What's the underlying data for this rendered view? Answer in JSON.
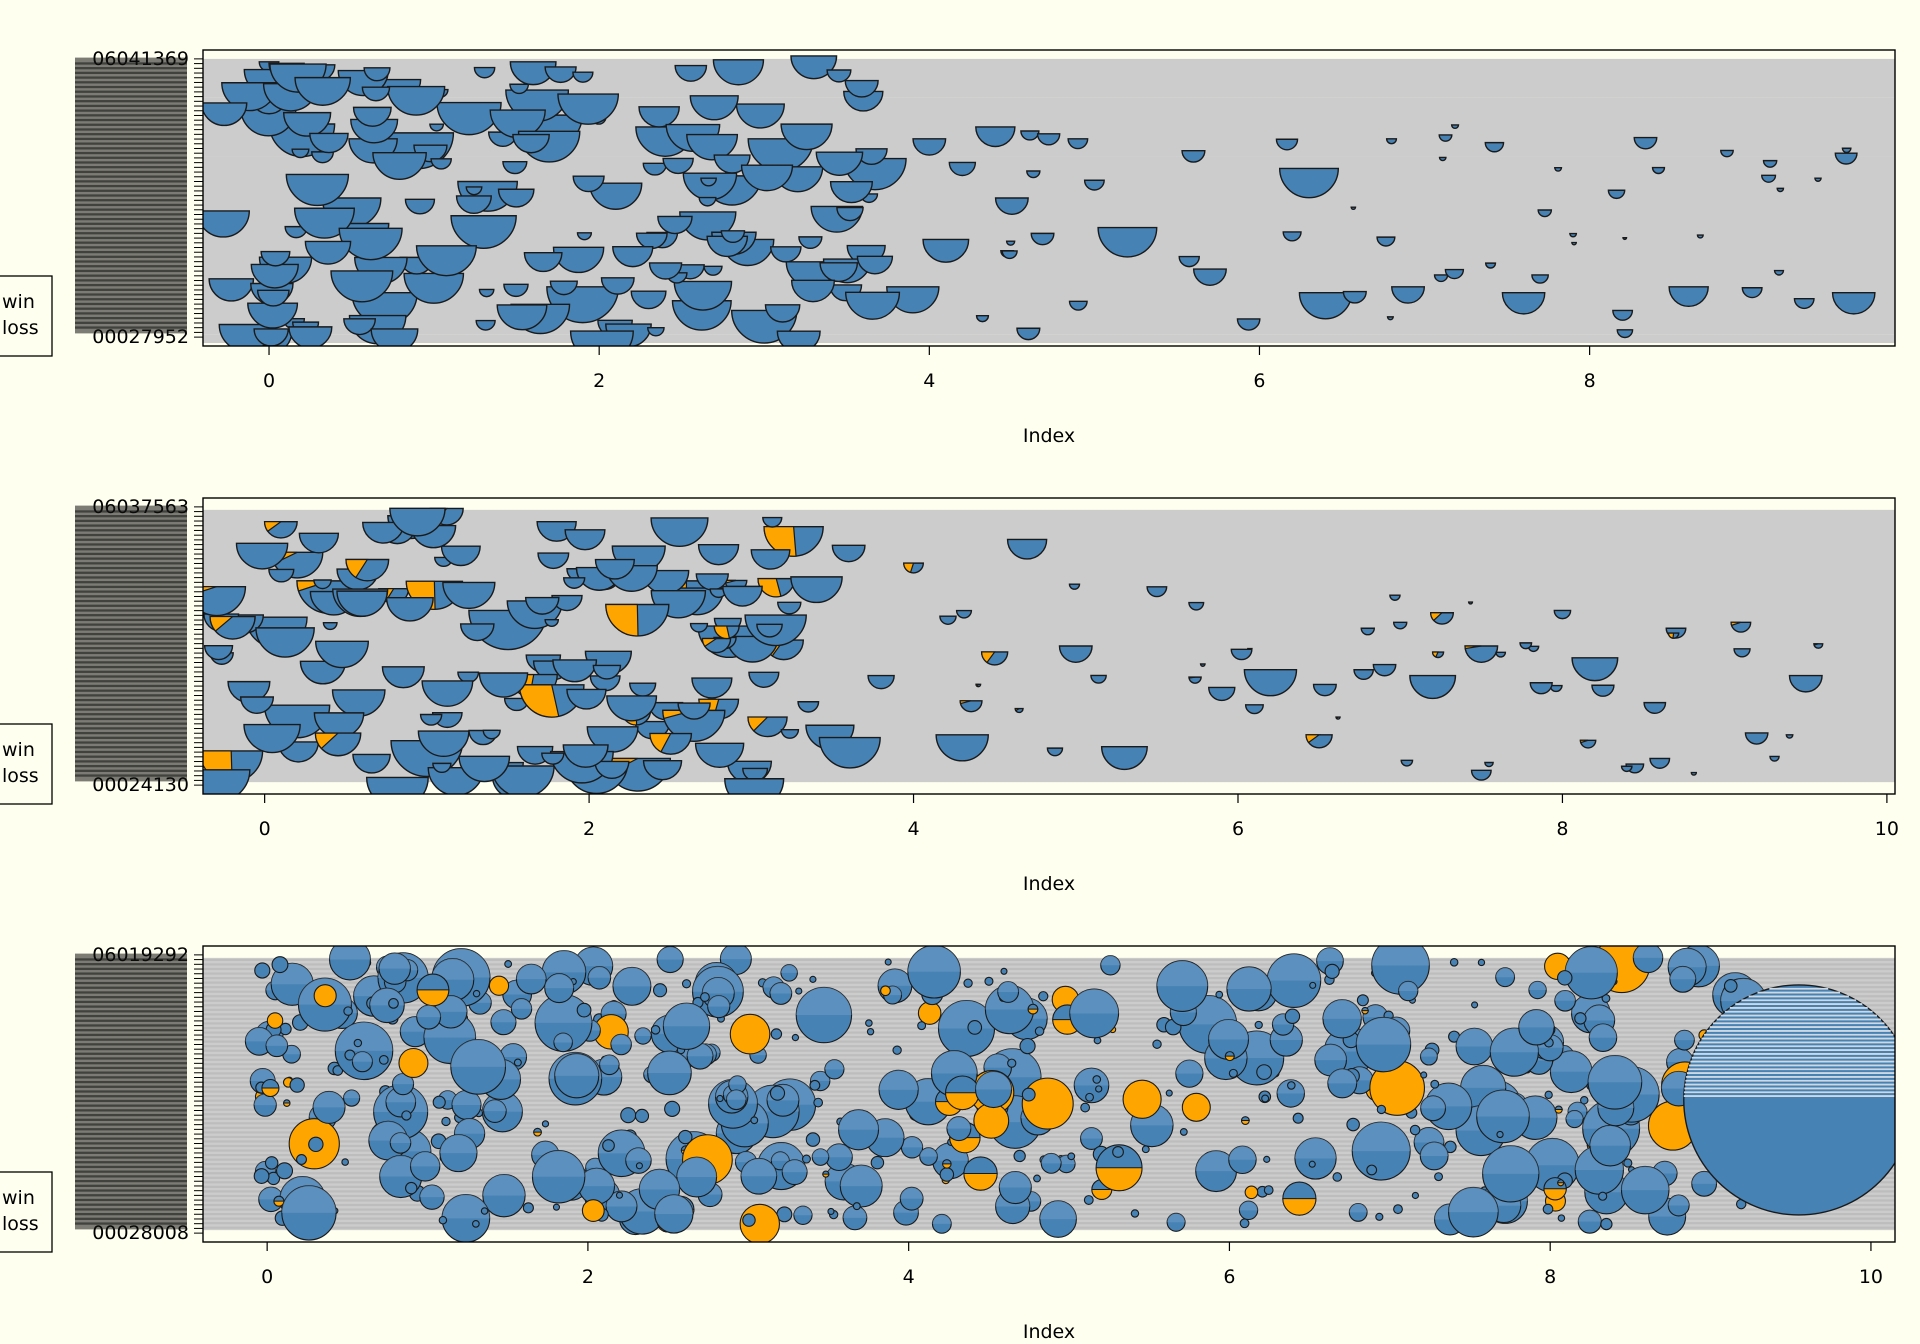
{
  "chart_data": [
    {
      "type": "scatter",
      "title": "",
      "xlabel": "Index",
      "ylabel": "",
      "xlim": [
        -0.4,
        9.85
      ],
      "xticks": [
        0,
        2,
        4,
        6,
        8
      ],
      "y_tick_labels": {
        "top": "06041369",
        "bottom": "00027952"
      },
      "y_tick_count": 60,
      "legend": {
        "placement": "left-bottom",
        "entries": [
          "win",
          "loss"
        ]
      },
      "series": [
        {
          "name": "win",
          "color": "#ffa500"
        },
        {
          "name": "loss",
          "color": "#4682b4"
        }
      ],
      "band_color": "#cccccc",
      "bands": [
        [
          0.01,
          0.04
        ],
        [
          0.04,
          0.64
        ],
        [
          0.64,
          0.84
        ],
        [
          0.84,
          0.97
        ]
      ],
      "points": [
        {
          "x": 0.0,
          "y": 0.96,
          "r": 0.06,
          "w": 0
        },
        {
          "x": 0.3,
          "y": 0.95,
          "r": 0.1,
          "w": 0
        },
        {
          "x": 0.8,
          "y": 0.9,
          "r": 0.12,
          "w": 0
        },
        {
          "x": 1.6,
          "y": 0.96,
          "r": 0.14,
          "w": 0
        },
        {
          "x": 3.3,
          "y": 0.98,
          "r": 0.14,
          "w": 0
        },
        {
          "x": 3.6,
          "y": 0.86,
          "r": 0.12,
          "w": 0
        },
        {
          "x": 0.2,
          "y": 0.75,
          "r": 0.2,
          "w": 0
        },
        {
          "x": 0.9,
          "y": 0.72,
          "r": 0.22,
          "w": 0
        },
        {
          "x": 1.7,
          "y": 0.78,
          "r": 0.2,
          "w": 0
        },
        {
          "x": 2.4,
          "y": 0.74,
          "r": 0.18,
          "w": 0
        },
        {
          "x": 3.1,
          "y": 0.7,
          "r": 0.2,
          "w": 0
        },
        {
          "x": 4.0,
          "y": 0.7,
          "r": 0.1,
          "w": 0
        },
        {
          "x": 4.4,
          "y": 0.74,
          "r": 0.12,
          "w": 0
        },
        {
          "x": 5.0,
          "y": 0.56,
          "r": 0.06,
          "w": 0
        },
        {
          "x": 5.6,
          "y": 0.66,
          "r": 0.07,
          "w": 0
        },
        {
          "x": 6.3,
          "y": 0.6,
          "r": 0.18,
          "w": 0
        },
        {
          "x": 6.8,
          "y": 0.7,
          "r": 0.03,
          "w": 0
        },
        {
          "x": 4.5,
          "y": 0.5,
          "r": 0.1,
          "w": 0
        },
        {
          "x": 5.2,
          "y": 0.4,
          "r": 0.18,
          "w": 0
        },
        {
          "x": 4.1,
          "y": 0.36,
          "r": 0.14,
          "w": 0
        },
        {
          "x": 2.9,
          "y": 0.36,
          "r": 0.16,
          "w": 0
        },
        {
          "x": 1.3,
          "y": 0.44,
          "r": 0.2,
          "w": 0
        },
        {
          "x": 0.5,
          "y": 0.5,
          "r": 0.18,
          "w": 0
        },
        {
          "x": 0.1,
          "y": 0.3,
          "r": 0.16,
          "w": 0
        },
        {
          "x": 0.7,
          "y": 0.18,
          "r": 0.2,
          "w": 0
        },
        {
          "x": 1.9,
          "y": 0.2,
          "r": 0.22,
          "w": 0
        },
        {
          "x": 3.0,
          "y": 0.12,
          "r": 0.2,
          "w": 0
        },
        {
          "x": 3.9,
          "y": 0.2,
          "r": 0.16,
          "w": 0
        },
        {
          "x": 4.6,
          "y": 0.06,
          "r": 0.07,
          "w": 0
        },
        {
          "x": 5.7,
          "y": 0.26,
          "r": 0.1,
          "w": 0
        },
        {
          "x": 6.4,
          "y": 0.18,
          "r": 0.16,
          "w": 0
        },
        {
          "x": 6.9,
          "y": 0.2,
          "r": 0.1,
          "w": 0
        },
        {
          "x": 7.6,
          "y": 0.18,
          "r": 0.13,
          "w": 0
        },
        {
          "x": 8.2,
          "y": 0.12,
          "r": 0.06,
          "w": 0
        },
        {
          "x": 8.6,
          "y": 0.2,
          "r": 0.12,
          "w": 0
        },
        {
          "x": 9.3,
          "y": 0.16,
          "r": 0.06,
          "w": 0
        },
        {
          "x": 9.6,
          "y": 0.18,
          "r": 0.13,
          "w": 0
        },
        {
          "x": 7.4,
          "y": 0.28,
          "r": 0.03,
          "w": 0
        },
        {
          "x": 7.9,
          "y": 0.38,
          "r": 0.02,
          "w": 0
        },
        {
          "x": 7.1,
          "y": 0.24,
          "r": 0.04,
          "w": 0
        },
        {
          "x": 7.7,
          "y": 0.24,
          "r": 0.05,
          "w": 0
        },
        {
          "x": 4.9,
          "y": 0.7,
          "r": 0.06,
          "w": 0
        },
        {
          "x": 4.2,
          "y": 0.62,
          "r": 0.08,
          "w": 0
        },
        {
          "x": 2.1,
          "y": 0.55,
          "r": 0.16,
          "w": 0
        },
        {
          "x": 0.0,
          "y": 0.05,
          "r": 0.14,
          "w": 0
        }
      ]
    },
    {
      "type": "scatter",
      "title": "",
      "xlabel": "Index",
      "ylabel": "",
      "xlim": [
        -0.38,
        10.05
      ],
      "xticks": [
        0,
        2,
        4,
        6,
        8,
        10
      ],
      "y_tick_labels": {
        "top": "06037563",
        "bottom": "00024130"
      },
      "y_tick_count": 60,
      "legend": {
        "placement": "left-bottom",
        "entries": [
          "win",
          "loss"
        ]
      },
      "series": [
        {
          "name": "win",
          "color": "#ffa500"
        },
        {
          "name": "loss",
          "color": "#4682b4"
        }
      ],
      "band_color": "#cccccc",
      "bands": [
        [
          0.04,
          0.96
        ]
      ],
      "points": [
        {
          "x": 0.1,
          "y": 0.92,
          "r": 0.1,
          "w": 0.2
        },
        {
          "x": 0.9,
          "y": 0.94,
          "r": 0.14,
          "w": 0
        },
        {
          "x": 1.8,
          "y": 0.92,
          "r": 0.12,
          "w": 0
        },
        {
          "x": 4.7,
          "y": 0.86,
          "r": 0.12,
          "w": 0
        },
        {
          "x": 2.6,
          "y": 0.72,
          "r": 0.18,
          "w": 0.5
        },
        {
          "x": 0.4,
          "y": 0.72,
          "r": 0.2,
          "w": 0.1
        },
        {
          "x": 1.5,
          "y": 0.62,
          "r": 0.24,
          "w": 0
        },
        {
          "x": 3.2,
          "y": 0.52,
          "r": 0.12,
          "w": 0.3
        },
        {
          "x": 4.0,
          "y": 0.78,
          "r": 0.06,
          "w": 0.4
        },
        {
          "x": 4.5,
          "y": 0.48,
          "r": 0.08,
          "w": 0.3
        },
        {
          "x": 5.5,
          "y": 0.7,
          "r": 0.06,
          "w": 0
        },
        {
          "x": 6.2,
          "y": 0.42,
          "r": 0.16,
          "w": 0
        },
        {
          "x": 7.2,
          "y": 0.4,
          "r": 0.14,
          "w": 0
        },
        {
          "x": 7.5,
          "y": 0.5,
          "r": 0.1,
          "w": 0.05
        },
        {
          "x": 8.2,
          "y": 0.46,
          "r": 0.14,
          "w": 0
        },
        {
          "x": 9.5,
          "y": 0.4,
          "r": 0.1,
          "w": 0
        },
        {
          "x": 9.1,
          "y": 0.58,
          "r": 0.06,
          "w": 0.1
        },
        {
          "x": 9.4,
          "y": 0.2,
          "r": 0.02,
          "w": 0
        },
        {
          "x": 8.6,
          "y": 0.12,
          "r": 0.06,
          "w": 0
        },
        {
          "x": 7.5,
          "y": 0.08,
          "r": 0.06,
          "w": 0
        },
        {
          "x": 6.5,
          "y": 0.2,
          "r": 0.08,
          "w": 0.2
        },
        {
          "x": 5.3,
          "y": 0.16,
          "r": 0.14,
          "w": 0
        },
        {
          "x": 4.3,
          "y": 0.2,
          "r": 0.16,
          "w": 0
        },
        {
          "x": 3.1,
          "y": 0.26,
          "r": 0.12,
          "w": 0.25
        },
        {
          "x": 2.3,
          "y": 0.12,
          "r": 0.2,
          "w": 0.15
        },
        {
          "x": 1.0,
          "y": 0.18,
          "r": 0.22,
          "w": 0
        },
        {
          "x": 0.2,
          "y": 0.3,
          "r": 0.2,
          "w": 0
        },
        {
          "x": 5.9,
          "y": 0.36,
          "r": 0.08,
          "w": 0
        },
        {
          "x": 6.8,
          "y": 0.56,
          "r": 0.04,
          "w": 0
        },
        {
          "x": 8.0,
          "y": 0.62,
          "r": 0.05,
          "w": 0
        },
        {
          "x": 8.7,
          "y": 0.56,
          "r": 0.06,
          "w": 0
        },
        {
          "x": 7.0,
          "y": 0.58,
          "r": 0.04,
          "w": 0
        },
        {
          "x": 5.0,
          "y": 0.5,
          "r": 0.1,
          "w": 0
        },
        {
          "x": 3.8,
          "y": 0.4,
          "r": 0.08,
          "w": 0
        },
        {
          "x": 3.6,
          "y": 0.84,
          "r": 0.1,
          "w": 0
        }
      ]
    },
    {
      "type": "scatter",
      "title": "",
      "xlabel": "Index",
      "ylabel": "",
      "xlim": [
        -0.4,
        10.15
      ],
      "xticks": [
        0,
        2,
        4,
        6,
        8,
        10
      ],
      "y_tick_labels": {
        "top": "06019292",
        "bottom": "00028008"
      },
      "y_tick_count": 60,
      "legend": {
        "placement": "left-bottom",
        "entries": [
          "win",
          "loss"
        ]
      },
      "series": [
        {
          "name": "win",
          "color": "#ffa500"
        },
        {
          "name": "loss",
          "color": "#4682b4"
        }
      ],
      "band_color": "#cccccc",
      "bands": [
        [
          0.04,
          0.96
        ]
      ],
      "big_point": {
        "x": 9.55,
        "y": 0.48,
        "r": 0.78,
        "w": 0
      }
    }
  ]
}
